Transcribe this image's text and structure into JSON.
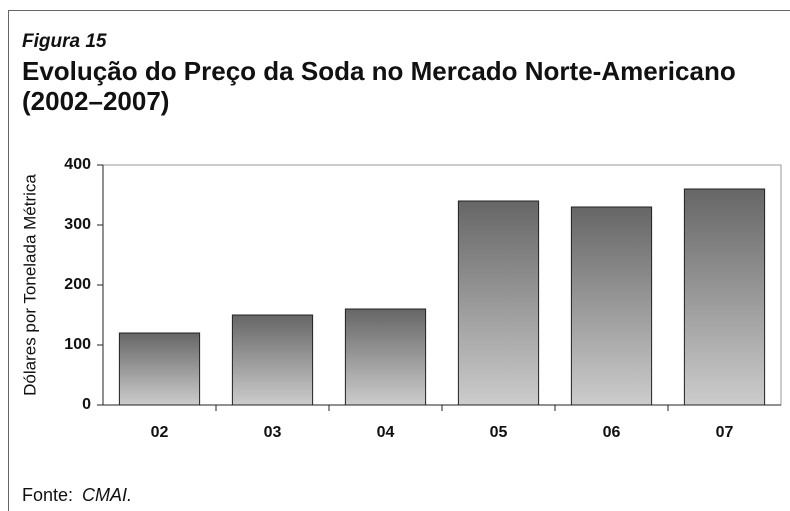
{
  "chart_data": {
    "type": "bar",
    "figure_label": "Figura 15",
    "title": "Evolução do Preço da Soda no Mercado Norte-Americano",
    "subtitle": "(2002–2007)",
    "y_label": "Dólares por Tonelada Métrica",
    "categories": [
      "02",
      "03",
      "04",
      "05",
      "06",
      "07"
    ],
    "values": [
      120,
      150,
      160,
      340,
      330,
      360
    ],
    "color_top": "#666666",
    "color_bottom": "#cccccc",
    "ylim": [
      0,
      400
    ],
    "yticks": [
      0,
      100,
      200,
      300,
      400
    ],
    "grid": false,
    "source_label": "Fonte:",
    "source": "CMAI."
  }
}
